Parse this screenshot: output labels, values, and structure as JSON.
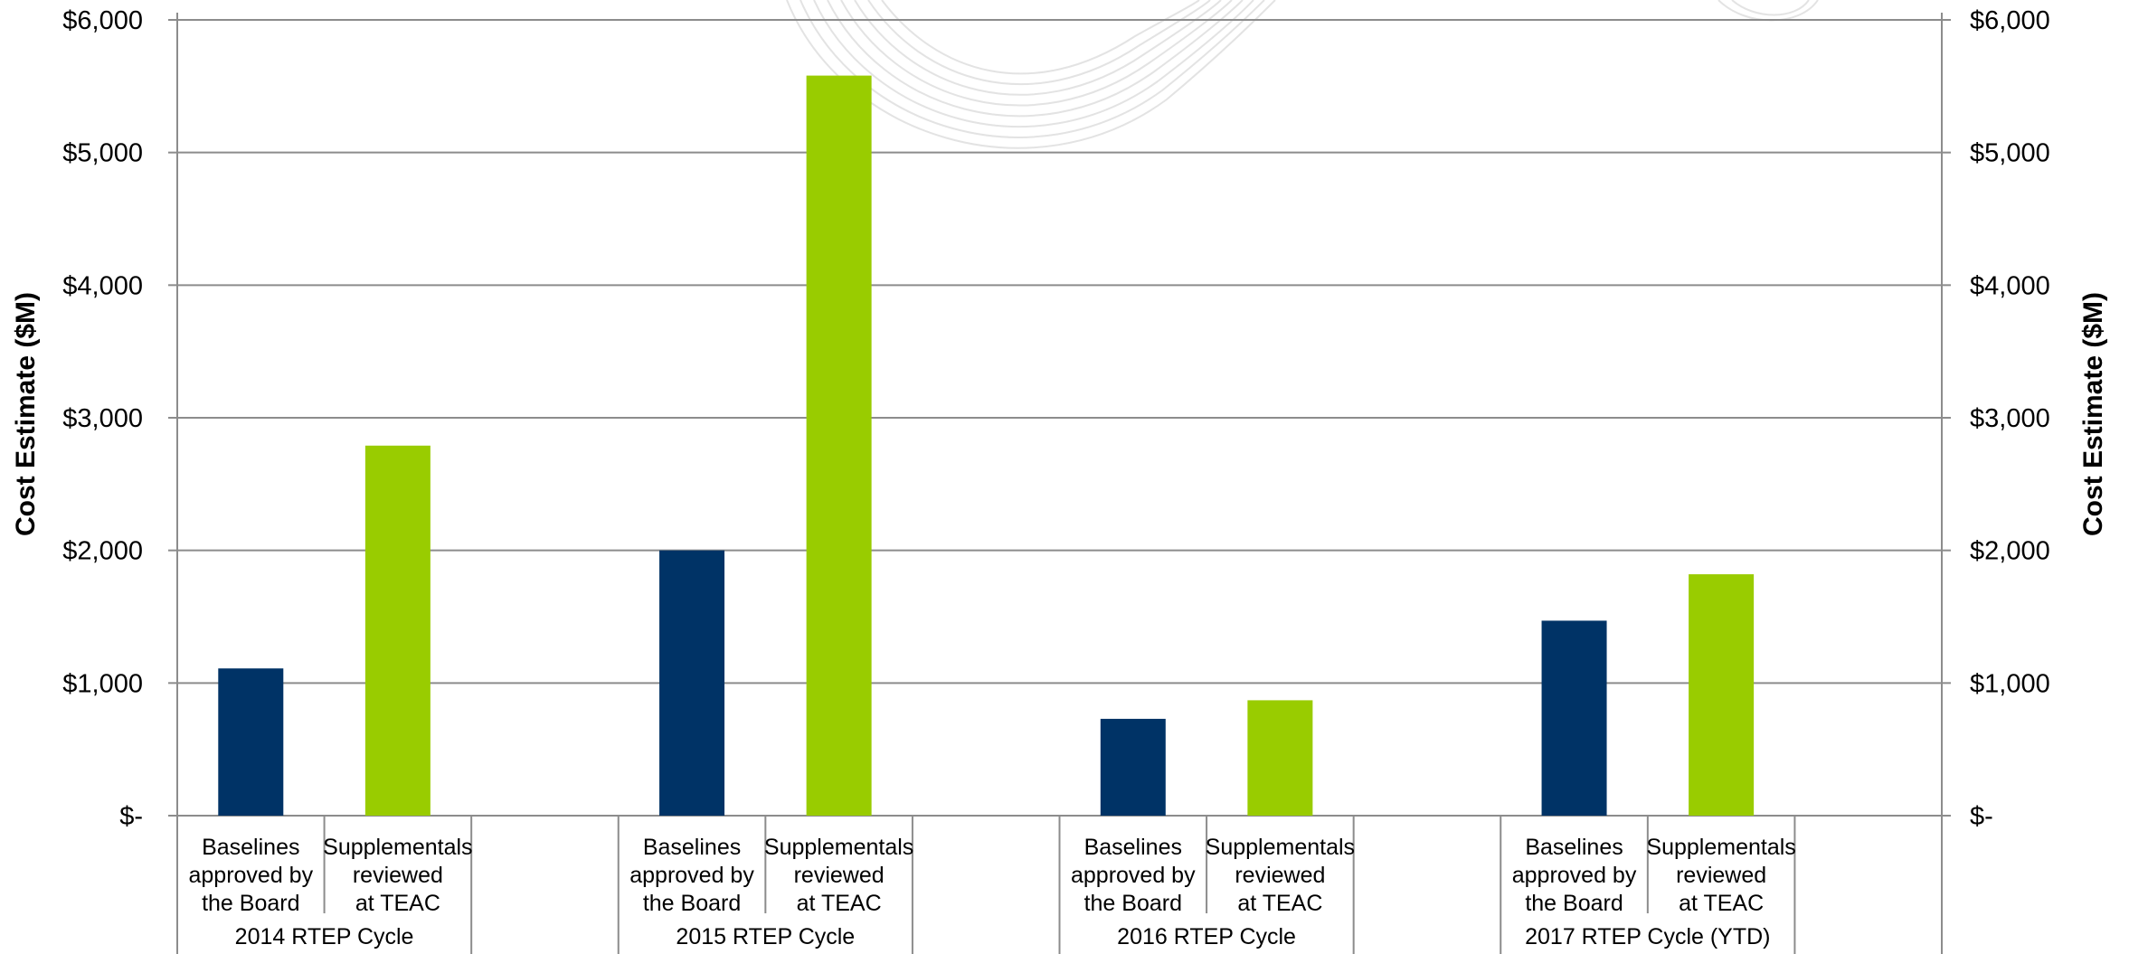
{
  "chart_data": {
    "type": "bar",
    "ylabel": "Cost Estimate ($M)",
    "y2label": "Cost Estimate ($M)",
    "ylim": [
      0,
      6000
    ],
    "yticks": [
      "$-",
      "$1,000",
      "$2,000",
      "$3,000",
      "$4,000",
      "$5,000",
      "$6,000"
    ],
    "grid": true,
    "groups": [
      {
        "label": "2014 RTEP Cycle",
        "bars": [
          {
            "label_lines": [
              "Baselines",
              "approved by",
              "the Board"
            ],
            "value": 1110,
            "color": "#003366"
          },
          {
            "label_lines": [
              "Supplementals",
              "reviewed",
              "at TEAC"
            ],
            "value": 2790,
            "color": "#99CC00"
          }
        ]
      },
      {
        "label": "2015 RTEP Cycle",
        "bars": [
          {
            "label_lines": [
              "Baselines",
              "approved by",
              "the Board"
            ],
            "value": 2000,
            "color": "#003366"
          },
          {
            "label_lines": [
              "Supplementals",
              "reviewed",
              "at TEAC"
            ],
            "value": 5580,
            "color": "#99CC00"
          }
        ]
      },
      {
        "label": "2016 RTEP Cycle",
        "bars": [
          {
            "label_lines": [
              "Baselines",
              "approved by",
              "the Board"
            ],
            "value": 730,
            "color": "#003366"
          },
          {
            "label_lines": [
              "Supplementals",
              "reviewed",
              "at TEAC"
            ],
            "value": 870,
            "color": "#99CC00"
          }
        ]
      },
      {
        "label": "2017 RTEP Cycle (YTD)",
        "bars": [
          {
            "label_lines": [
              "Baselines",
              "approved by",
              "the Board"
            ],
            "value": 1470,
            "color": "#003366"
          },
          {
            "label_lines": [
              "Supplementals",
              "reviewed",
              "at TEAC"
            ],
            "value": 1820,
            "color": "#99CC00"
          }
        ]
      }
    ]
  }
}
